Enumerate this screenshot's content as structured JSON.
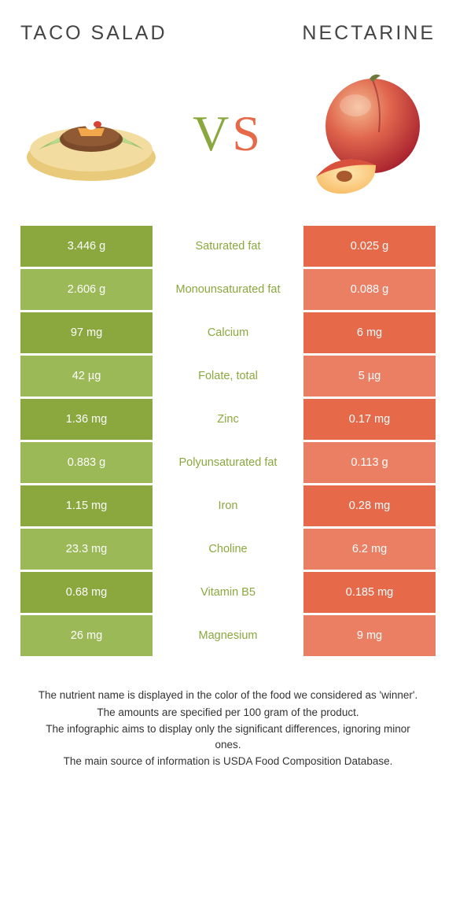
{
  "colors": {
    "left_dark": "#8aa83e",
    "left_light": "#9bb957",
    "right_dark": "#e66a4a",
    "right_light": "#eb7f64",
    "mid_text_left": "#8aa83e",
    "mid_text_right": "#e66a4a"
  },
  "header": {
    "left_title": "Taco salad",
    "right_title": "Nectarine",
    "vs_v": "V",
    "vs_s": "S"
  },
  "rows": [
    {
      "label": "Saturated fat",
      "left": "3.446 g",
      "right": "0.025 g",
      "winner": "left"
    },
    {
      "label": "Monounsaturated fat",
      "left": "2.606 g",
      "right": "0.088 g",
      "winner": "left"
    },
    {
      "label": "Calcium",
      "left": "97 mg",
      "right": "6 mg",
      "winner": "left"
    },
    {
      "label": "Folate, total",
      "left": "42 µg",
      "right": "5 µg",
      "winner": "left"
    },
    {
      "label": "Zinc",
      "left": "1.36 mg",
      "right": "0.17 mg",
      "winner": "left"
    },
    {
      "label": "Polyunsaturated fat",
      "left": "0.883 g",
      "right": "0.113 g",
      "winner": "left"
    },
    {
      "label": "Iron",
      "left": "1.15 mg",
      "right": "0.28 mg",
      "winner": "left"
    },
    {
      "label": "Choline",
      "left": "23.3 mg",
      "right": "6.2 mg",
      "winner": "left"
    },
    {
      "label": "Vitamin B5",
      "left": "0.68 mg",
      "right": "0.185 mg",
      "winner": "left"
    },
    {
      "label": "Magnesium",
      "left": "26 mg",
      "right": "9 mg",
      "winner": "left"
    }
  ],
  "footnotes": [
    "The nutrient name is displayed in the color of the food we considered as 'winner'.",
    "The amounts are specified per 100 gram of the product.",
    "The infographic aims to display only the significant differences, ignoring minor ones.",
    "The main source of information is USDA Food Composition Database."
  ]
}
